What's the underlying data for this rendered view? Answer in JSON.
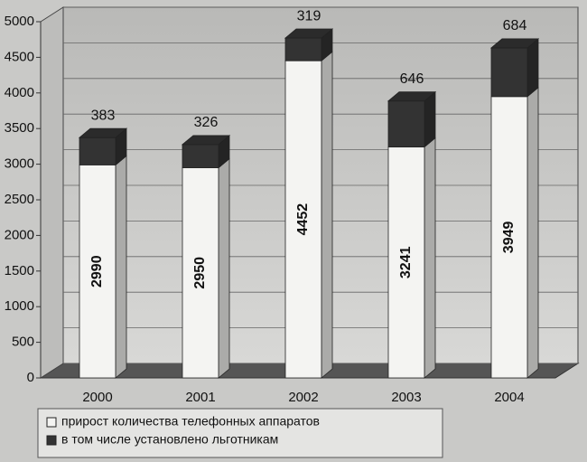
{
  "chart_data": {
    "type": "bar",
    "stacked": true,
    "categories": [
      "2000",
      "2001",
      "2002",
      "2003",
      "2004"
    ],
    "series": [
      {
        "name": "прирост количества телефонных аппаратов",
        "color": "#f4f4f2",
        "values": [
          2990,
          2950,
          4452,
          3241,
          3949
        ]
      },
      {
        "name": "в том числе установлено льготникам",
        "color": "#333333",
        "values": [
          383,
          326,
          319,
          646,
          684
        ]
      }
    ],
    "ylim": [
      0,
      5000
    ],
    "yticks": [
      0,
      500,
      1000,
      1500,
      2000,
      2500,
      3000,
      3500,
      4000,
      4500,
      5000
    ],
    "grid": true,
    "legend": "bottom"
  }
}
